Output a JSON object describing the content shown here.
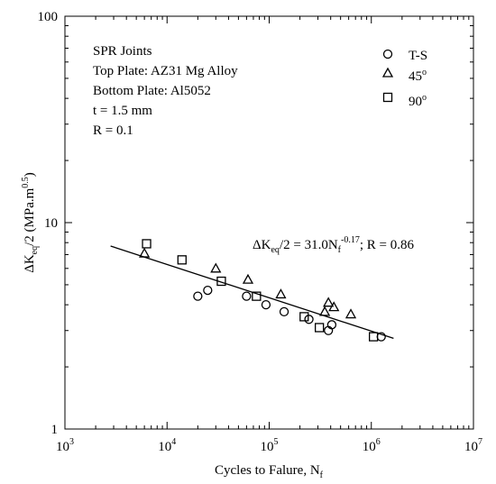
{
  "chart_data": {
    "type": "scatter",
    "xscale": "log",
    "yscale": "log",
    "xlim": [
      1000,
      10000000
    ],
    "ylim": [
      1,
      100
    ],
    "x_ticks": [
      {
        "value": 1000,
        "base": "10",
        "exp": "3"
      },
      {
        "value": 10000,
        "base": "10",
        "exp": "4"
      },
      {
        "value": 100000,
        "base": "10",
        "exp": "5"
      },
      {
        "value": 1000000,
        "base": "10",
        "exp": "6"
      },
      {
        "value": 10000000,
        "base": "10",
        "exp": "7"
      }
    ],
    "y_ticks": [
      {
        "value": 1,
        "label": "1"
      },
      {
        "value": 10,
        "label": "10"
      },
      {
        "value": 100,
        "label": "100"
      }
    ],
    "xlabel": {
      "main": "Cycles to Falure, N",
      "sub": "f"
    },
    "ylabel": {
      "pre": "ΔK",
      "sub": "eq",
      "mid": "/2 (MPa.m",
      "sup": "0.5",
      "post": ")"
    },
    "annotation_lines": [
      "SPR Joints",
      "Top Plate: AZ31 Mg Alloy",
      "Bottom Plate: Al5052",
      "t = 1.5 mm",
      "R = 0.1"
    ],
    "equation": {
      "a": "ΔK",
      "a_sub": "eq",
      "b": "/2 = 31.0N",
      "b_sub": "f",
      "b_sup": "-0.17",
      "c": "; R = 0.86"
    },
    "legend_position": "top-right",
    "series": [
      {
        "name": "T-S",
        "marker": "circle",
        "points": [
          [
            20000,
            4.4
          ],
          [
            25000,
            4.7
          ],
          [
            60000,
            4.4
          ],
          [
            93000,
            4.0
          ],
          [
            140000,
            3.7
          ],
          [
            245000,
            3.4
          ],
          [
            380000,
            3.0
          ],
          [
            410000,
            3.2
          ],
          [
            1250000,
            2.8
          ]
        ]
      },
      {
        "name": "45",
        "name_sup": "o",
        "marker": "triangle",
        "points": [
          [
            6000,
            7.1
          ],
          [
            30000,
            6.0
          ],
          [
            62000,
            5.3
          ],
          [
            130000,
            4.5
          ],
          [
            350000,
            3.7
          ],
          [
            380000,
            4.1
          ],
          [
            430000,
            3.9
          ],
          [
            630000,
            3.6
          ]
        ]
      },
      {
        "name": "90",
        "name_sup": "o",
        "marker": "square",
        "points": [
          [
            6300,
            7.9
          ],
          [
            14000,
            6.6
          ],
          [
            34000,
            5.2
          ],
          [
            75000,
            4.4
          ],
          [
            220000,
            3.5
          ],
          [
            310000,
            3.1
          ],
          [
            1050000,
            2.8
          ]
        ]
      }
    ],
    "fit_line": {
      "x": [
        2800,
        1650000
      ],
      "y": [
        7.7,
        2.75
      ]
    }
  }
}
